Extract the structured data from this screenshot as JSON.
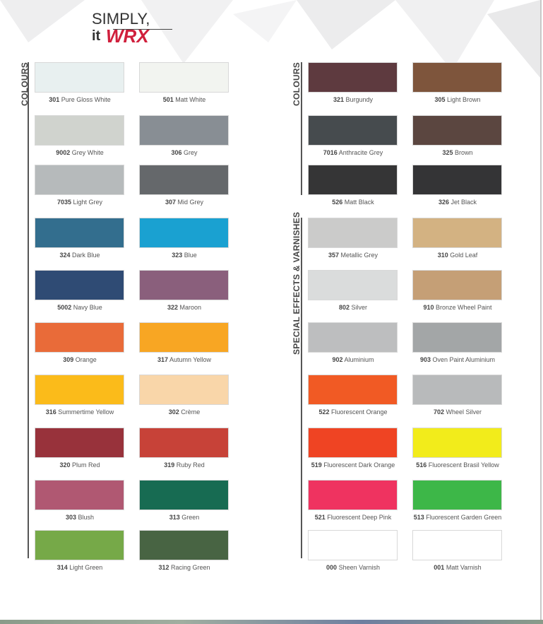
{
  "logo": {
    "line1": "SIMPLY,",
    "line2a": "it",
    "line2b": "WRX"
  },
  "sections": [
    {
      "label": "COLOURS"
    },
    {
      "label": "COLOURS"
    },
    {
      "label": "SPECIAL EFFECTS & VARNISHES"
    }
  ],
  "left_swatches": [
    {
      "code": "301",
      "name": "Pure Gloss White",
      "color": "#e8f0f0"
    },
    {
      "code": "501",
      "name": "Matt White",
      "color": "#f2f4f0"
    },
    {
      "code": "9002",
      "name": "Grey White",
      "color": "#d0d3ce"
    },
    {
      "code": "306",
      "name": "Grey",
      "color": "#888e94"
    },
    {
      "code": "7035",
      "name": "Light Grey",
      "color": "#b6babb"
    },
    {
      "code": "307",
      "name": "Mid Grey",
      "color": "#65686b"
    },
    {
      "code": "324",
      "name": "Dark Blue",
      "color": "#336e8e"
    },
    {
      "code": "323",
      "name": "Blue",
      "color": "#1aa1d1"
    },
    {
      "code": "5002",
      "name": "Navy Blue",
      "color": "#2f4b74"
    },
    {
      "code": "322",
      "name": "Maroon",
      "color": "#8a5f7c"
    },
    {
      "code": "309",
      "name": "Orange",
      "color": "#e96b39"
    },
    {
      "code": "317",
      "name": "Autumn Yellow",
      "color": "#f8a623"
    },
    {
      "code": "316",
      "name": "Summertime Yellow",
      "color": "#fbbb1a"
    },
    {
      "code": "302",
      "name": "Crème",
      "color": "#f9d6a9"
    },
    {
      "code": "320",
      "name": "Plum Red",
      "color": "#98323b"
    },
    {
      "code": "319",
      "name": "Ruby Red",
      "color": "#c74238"
    },
    {
      "code": "303",
      "name": "Blush",
      "color": "#b05872"
    },
    {
      "code": "313",
      "name": "Green",
      "color": "#176b52"
    },
    {
      "code": "314",
      "name": "Light Green",
      "color": "#76a948"
    },
    {
      "code": "312",
      "name": "Racing Green",
      "color": "#486443"
    }
  ],
  "right_swatches": [
    {
      "code": "321",
      "name": "Burgundy",
      "color": "#5e3a3f"
    },
    {
      "code": "305",
      "name": "Light Brown",
      "color": "#7e553c"
    },
    {
      "code": "7016",
      "name": "Anthracite Grey",
      "color": "#464b4e"
    },
    {
      "code": "325",
      "name": "Brown",
      "color": "#5b4640"
    },
    {
      "code": "526",
      "name": "Matt Black",
      "color": "#353536"
    },
    {
      "code": "326",
      "name": "Jet Black",
      "color": "#343436"
    },
    {
      "code": "357",
      "name": "Metallic Grey",
      "color": "#cbcbca"
    },
    {
      "code": "310",
      "name": "Gold Leaf",
      "color": "#d3b282"
    },
    {
      "code": "802",
      "name": "Silver",
      "color": "#dadcdc"
    },
    {
      "code": "910",
      "name": "Bronze Wheel Paint",
      "color": "#c59f76"
    },
    {
      "code": "902",
      "name": "Aluminium",
      "color": "#bdbebf"
    },
    {
      "code": "903",
      "name": "Oven Paint Aluminium",
      "color": "#a3a6a7"
    },
    {
      "code": "522",
      "name": "Fluorescent Orange",
      "color": "#f15a24"
    },
    {
      "code": "702",
      "name": "Wheel Silver",
      "color": "#b8babb"
    },
    {
      "code": "519",
      "name": "Fluorescent Dark Orange",
      "color": "#ef4423"
    },
    {
      "code": "516",
      "name": "Fluorescent Brasil Yellow",
      "color": "#f2ec1b"
    },
    {
      "code": "521",
      "name": "Fluorescent Deep Pink",
      "color": "#ef3360"
    },
    {
      "code": "513",
      "name": "Fluorescent Garden Green",
      "color": "#3db748"
    },
    {
      "code": "000",
      "name": "Sheen Varnish",
      "color": "#ffffff"
    },
    {
      "code": "001",
      "name": "Matt Varnish",
      "color": "#ffffff"
    }
  ]
}
